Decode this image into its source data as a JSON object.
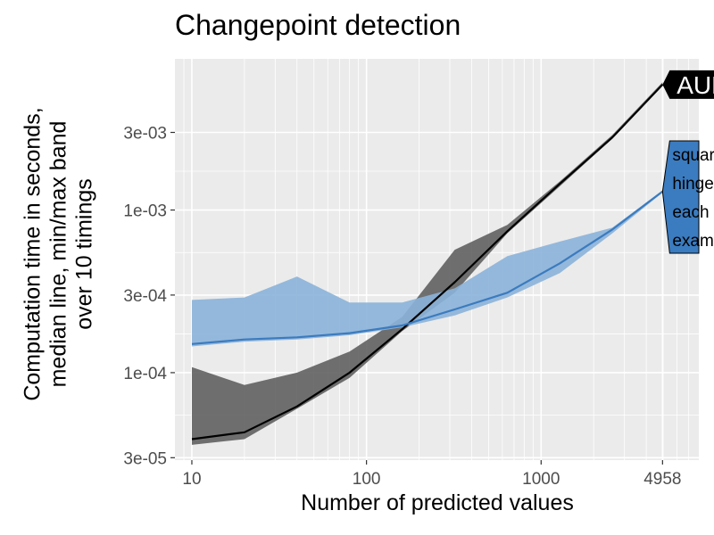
{
  "chart_data": {
    "type": "line",
    "title": "Changepoint detection",
    "xlabel": "Number of predicted values",
    "ylabel_lines": [
      "Computation time in seconds,",
      "median line, min/max band",
      "over 10 timings"
    ],
    "x_scale": "log",
    "y_scale": "log",
    "xlim": [
      8,
      8000
    ],
    "ylim": [
      2.9e-05,
      0.0085
    ],
    "x_ticks": [
      10,
      100,
      1000,
      4958
    ],
    "x_tick_labels": [
      "10",
      "100",
      "1000",
      "4958"
    ],
    "y_ticks": [
      3e-05,
      0.0001,
      0.0003,
      0.001,
      0.003
    ],
    "y_tick_labels": [
      "3e-05",
      "1e-04",
      "3e-04",
      "1e-03",
      "3e-03"
    ],
    "grid": true,
    "series": [
      {
        "name": "AUM",
        "color": "#000000",
        "band_color": "#606060",
        "x": [
          10,
          20,
          40,
          80,
          160,
          320,
          640,
          1280,
          2560,
          4958
        ],
        "median": [
          3.9e-05,
          4.3e-05,
          6.2e-05,
          0.0001,
          0.000185,
          0.00036,
          0.00074,
          0.00145,
          0.0028,
          0.0059
        ],
        "min": [
          3.6e-05,
          3.9e-05,
          6e-05,
          9.3e-05,
          0.00018,
          0.00031,
          0.00072,
          0.0014,
          0.00275,
          0.0058
        ],
        "max": [
          0.000108,
          8.4e-05,
          0.0001,
          0.000135,
          0.00022,
          0.00057,
          0.00081,
          0.0015,
          0.0029,
          0.0061
        ]
      },
      {
        "name": "squared hinge each example",
        "color": "#3b7bbf",
        "band_color": "#8bb2d9",
        "x": [
          10,
          20,
          40,
          80,
          160,
          320,
          640,
          1280,
          2560,
          4958
        ],
        "median": [
          0.00015,
          0.00016,
          0.000165,
          0.000175,
          0.000195,
          0.000245,
          0.00031,
          0.00047,
          0.00076,
          0.0013
        ],
        "min": [
          0.000145,
          0.000155,
          0.00016,
          0.00017,
          0.00019,
          0.000225,
          0.00029,
          0.00041,
          0.00072,
          0.00128
        ],
        "max": [
          0.00028,
          0.00029,
          0.00039,
          0.00027,
          0.00027,
          0.00033,
          0.00052,
          0.00064,
          0.00078,
          0.00132
        ]
      }
    ],
    "labels": [
      {
        "text": "AUM",
        "series": 0,
        "fill": "#000000",
        "text_color": "#ffffff"
      },
      {
        "lines": [
          "squared",
          "hinge",
          "each",
          "example"
        ],
        "series": 1,
        "fill": "#3b7bbf",
        "text_color": "#000000"
      }
    ]
  }
}
